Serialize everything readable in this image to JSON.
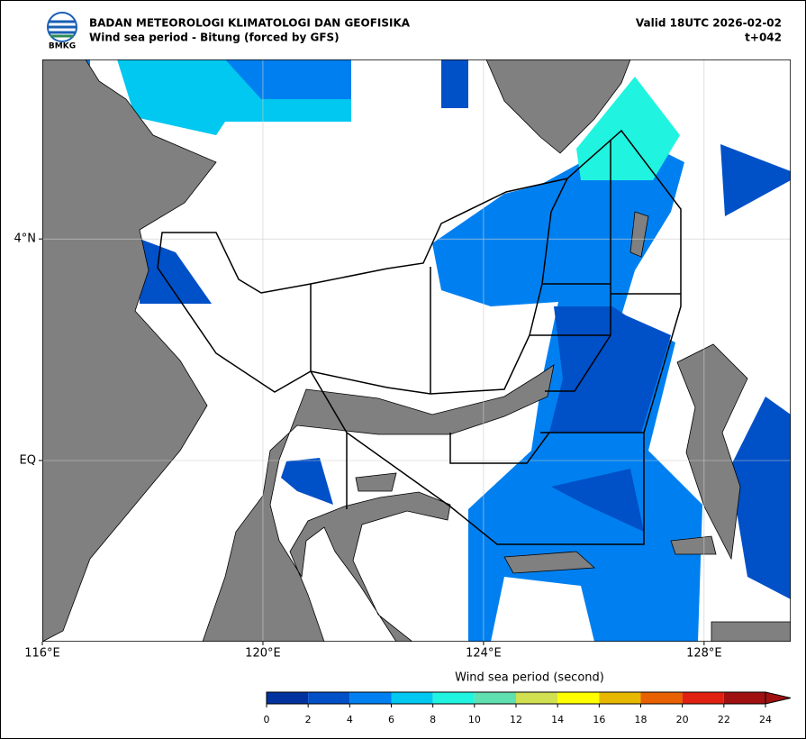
{
  "header": {
    "agency": "BADAN METEOROLOGI KLIMATOLOGI DAN GEOFISIKA",
    "product": "Wind sea period - Bitung (forced by GFS)",
    "valid": "Valid 18UTC 2026-02-02",
    "lead": "t+042",
    "logo_text": "BMKG"
  },
  "map": {
    "xlim": [
      116,
      129.57
    ],
    "ylim": [
      -3.27,
      7.24
    ],
    "xticks": [
      {
        "value": 116,
        "label": "116°E"
      },
      {
        "value": 120,
        "label": "120°E"
      },
      {
        "value": 124,
        "label": "124°E"
      },
      {
        "value": 128,
        "label": "128°E"
      }
    ],
    "yticks": [
      {
        "value": 4,
        "label": "4°N"
      },
      {
        "value": 0,
        "label": "EQ"
      }
    ]
  },
  "colorbar": {
    "title": "Wind sea period (second)",
    "ticks": [
      0,
      2,
      4,
      6,
      8,
      10,
      12,
      14,
      16,
      18,
      20,
      22,
      24
    ],
    "colors": [
      "#0033a0",
      "#0050c8",
      "#0080f0",
      "#00c8f0",
      "#20f4e0",
      "#60e0b0",
      "#d0e050",
      "#ffff00",
      "#e8b800",
      "#e86000",
      "#e02010",
      "#a01010"
    ]
  }
}
